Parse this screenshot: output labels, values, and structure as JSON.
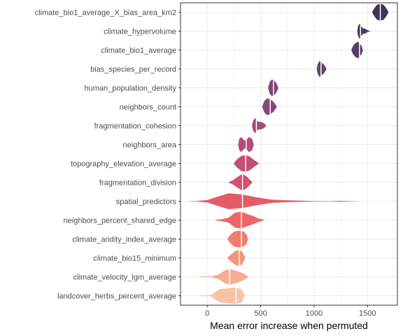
{
  "chart_data": {
    "type": "violin",
    "xlabel": "Mean error increase when permuted",
    "ylabel": "",
    "xlim": [
      -250,
      1780
    ],
    "x_ticks": [
      0,
      500,
      1000,
      1500
    ],
    "x_tick_labels": [
      "0",
      "500",
      "1000",
      "1500"
    ],
    "grid": true,
    "legend": "none",
    "categories": [
      "climate_bio1_average_X_bias_area_km2",
      "climate_hypervolume",
      "climate_bio1_average",
      "bias_species_per_record",
      "human_population_density",
      "neighbors_count",
      "fragmentation_cohesion",
      "neighbors_area",
      "topography_elevation_average",
      "fragmentation_division",
      "spatial_predictors",
      "neighbors_percent_shared_edge",
      "climate_aridity_index_average",
      "climate_bio15_minimum",
      "climate_velocity_lgm_average",
      "landcover_herbs_percent_average"
    ],
    "series": [
      {
        "color": "#3f3651",
        "median": 1620,
        "profile": [
          [
            1545,
            0.05
          ],
          [
            1565,
            0.5
          ],
          [
            1590,
            0.9
          ],
          [
            1620,
            1.0
          ],
          [
            1650,
            0.9
          ],
          [
            1675,
            0.5
          ],
          [
            1695,
            0.05
          ]
        ]
      },
      {
        "color": "#4b3a5e",
        "median": 1435,
        "profile": [
          [
            1405,
            0.05
          ],
          [
            1412,
            0.6
          ],
          [
            1425,
            0.9
          ],
          [
            1440,
            0.6
          ],
          [
            1460,
            0.3
          ],
          [
            1480,
            0.3
          ],
          [
            1500,
            0.1
          ],
          [
            1525,
            0.02
          ]
        ]
      },
      {
        "color": "#573f67",
        "median": 1425,
        "profile": [
          [
            1350,
            0.05
          ],
          [
            1365,
            0.5
          ],
          [
            1385,
            0.8
          ],
          [
            1410,
            1.0
          ],
          [
            1430,
            0.7
          ],
          [
            1445,
            0.5
          ],
          [
            1455,
            0.05
          ]
        ]
      },
      {
        "color": "#66436e",
        "median": 1065,
        "profile": [
          [
            1025,
            0.05
          ],
          [
            1035,
            0.6
          ],
          [
            1050,
            0.95
          ],
          [
            1065,
            0.8
          ],
          [
            1085,
            0.6
          ],
          [
            1100,
            0.4
          ],
          [
            1115,
            0.05
          ]
        ]
      },
      {
        "color": "#7c4675",
        "median": 620,
        "profile": [
          [
            570,
            0.05
          ],
          [
            585,
            0.7
          ],
          [
            605,
            1.0
          ],
          [
            625,
            0.9
          ],
          [
            645,
            0.6
          ],
          [
            665,
            0.05
          ]
        ]
      },
      {
        "color": "#8a4876",
        "median": 590,
        "profile": [
          [
            515,
            0.05
          ],
          [
            535,
            0.7
          ],
          [
            560,
            1.0
          ],
          [
            590,
            0.9
          ],
          [
            620,
            0.6
          ],
          [
            650,
            0.05
          ]
        ]
      },
      {
        "color": "#a64a78",
        "median": 460,
        "profile": [
          [
            420,
            0.05
          ],
          [
            430,
            0.6
          ],
          [
            450,
            0.9
          ],
          [
            470,
            0.5
          ],
          [
            500,
            0.45
          ],
          [
            530,
            0.3
          ],
          [
            550,
            0.05
          ]
        ]
      },
      {
        "color": "#b34d77",
        "median": 365,
        "profile": [
          [
            290,
            0.05
          ],
          [
            300,
            0.7
          ],
          [
            320,
            0.9
          ],
          [
            345,
            0.5
          ],
          [
            365,
            0.5
          ],
          [
            390,
            0.9
          ],
          [
            420,
            0.7
          ],
          [
            435,
            0.05
          ]
        ]
      },
      {
        "color": "#c44f72",
        "median": 360,
        "profile": [
          [
            250,
            0.05
          ],
          [
            280,
            0.5
          ],
          [
            320,
            0.9
          ],
          [
            360,
            1.0
          ],
          [
            400,
            0.8
          ],
          [
            440,
            0.4
          ],
          [
            480,
            0.05
          ]
        ]
      },
      {
        "color": "#d4516d",
        "median": 330,
        "profile": [
          [
            200,
            0.02
          ],
          [
            240,
            0.25
          ],
          [
            290,
            0.7
          ],
          [
            330,
            1.0
          ],
          [
            370,
            0.7
          ],
          [
            400,
            0.3
          ],
          [
            420,
            0.05
          ]
        ]
      },
      {
        "color": "#e45b67",
        "median": 330,
        "profile": [
          [
            -170,
            0.01
          ],
          [
            -100,
            0.03
          ],
          [
            0,
            0.15
          ],
          [
            100,
            0.55
          ],
          [
            200,
            0.95
          ],
          [
            330,
            0.8
          ],
          [
            450,
            0.5
          ],
          [
            600,
            0.2
          ],
          [
            750,
            0.12
          ],
          [
            900,
            0.06
          ],
          [
            1000,
            0.03
          ],
          [
            1150,
            0.02
          ],
          [
            1250,
            0.05
          ],
          [
            1350,
            0.02
          ],
          [
            1420,
            0.01
          ]
        ]
      },
      {
        "color": "#ea6968",
        "median": 320,
        "profile": [
          [
            80,
            0.05
          ],
          [
            130,
            0.1
          ],
          [
            200,
            0.3
          ],
          [
            260,
            0.9
          ],
          [
            320,
            1.0
          ],
          [
            380,
            0.7
          ],
          [
            430,
            0.5
          ],
          [
            480,
            0.2
          ],
          [
            530,
            0.05
          ]
        ]
      },
      {
        "color": "#ef7d6f",
        "median": 320,
        "profile": [
          [
            190,
            0.05
          ],
          [
            210,
            0.4
          ],
          [
            250,
            0.9
          ],
          [
            300,
            1.0
          ],
          [
            340,
            0.9
          ],
          [
            370,
            0.5
          ],
          [
            380,
            0.05
          ]
        ]
      },
      {
        "color": "#f2977d",
        "median": 300,
        "profile": [
          [
            190,
            0.05
          ],
          [
            230,
            0.5
          ],
          [
            260,
            0.8
          ],
          [
            300,
            1.0
          ],
          [
            330,
            0.7
          ],
          [
            355,
            0.05
          ]
        ]
      },
      {
        "color": "#f5ad93",
        "median": 210,
        "profile": [
          [
            -60,
            0.05
          ],
          [
            40,
            0.05
          ],
          [
            110,
            0.3
          ],
          [
            170,
            0.8
          ],
          [
            220,
            0.9
          ],
          [
            280,
            0.7
          ],
          [
            340,
            0.4
          ],
          [
            380,
            0.05
          ]
        ]
      },
      {
        "color": "#f7c3a7",
        "median": 270,
        "profile": [
          [
            -70,
            0.03
          ],
          [
            30,
            0.05
          ],
          [
            70,
            0.4
          ],
          [
            120,
            0.8
          ],
          [
            200,
            0.9
          ],
          [
            270,
            1.0
          ],
          [
            320,
            0.8
          ],
          [
            350,
            0.05
          ]
        ]
      }
    ]
  }
}
